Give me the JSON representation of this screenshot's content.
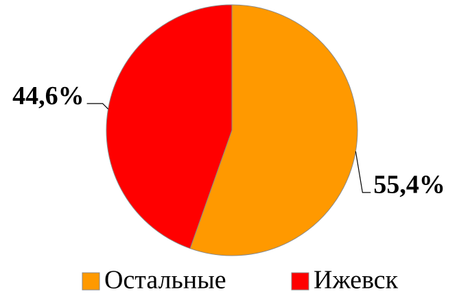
{
  "chart_data": {
    "type": "pie",
    "categories": [
      "Остальные",
      "Ижевск"
    ],
    "values": [
      55.4,
      44.6
    ],
    "value_labels": [
      "55,4%",
      "44,6%"
    ],
    "colors": [
      "#ff9900",
      "#ff0000"
    ],
    "legend": "bottom"
  }
}
